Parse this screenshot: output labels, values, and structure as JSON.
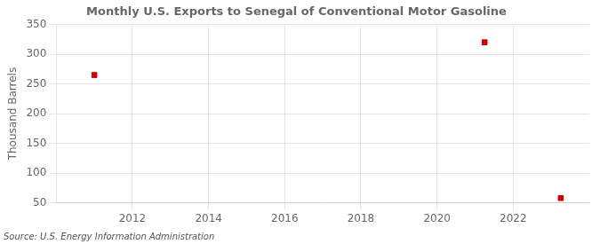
{
  "chart_data": {
    "type": "scatter",
    "title": "Monthly U.S. Exports to Senegal of Conventional Motor Gasoline",
    "y_label": "Thousand Barrels",
    "annotations": [
      "Source: U.S. Energy Information Administration"
    ],
    "x": [
      2011.0,
      2021.25,
      2023.25
    ],
    "values": [
      265,
      320,
      58
    ],
    "color": "#cc0000",
    "marker": "square",
    "xlim": [
      2010.0,
      2024.0
    ],
    "ylim": [
      50,
      350
    ],
    "xticks": [
      2012,
      2014,
      2016,
      2018,
      2020,
      2022
    ],
    "yticks": [
      50,
      100,
      150,
      200,
      250,
      300,
      350
    ],
    "grid": true
  }
}
